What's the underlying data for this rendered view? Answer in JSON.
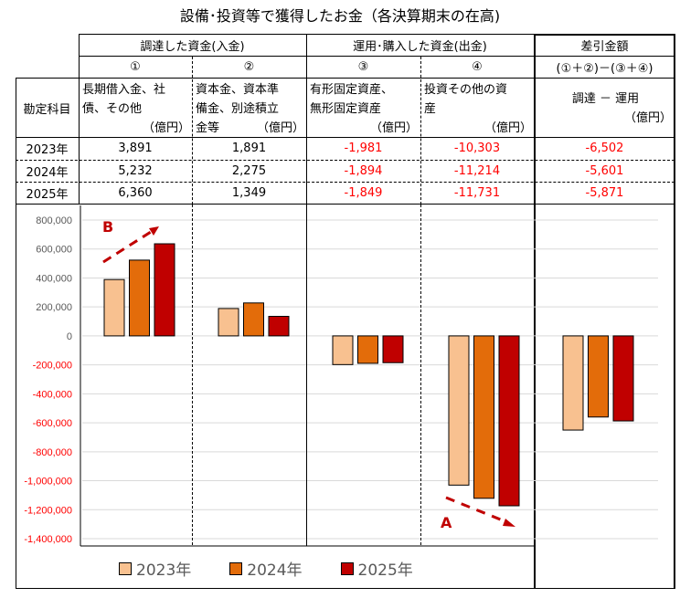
{
  "title": "設備･投資等で獲得したお金（各決算期末の在高)",
  "table": {
    "group_headers": [
      "調達した資金(入金)",
      "運用･購入した資金(出金)",
      "差引金額"
    ],
    "column_numbers": [
      "①",
      "②",
      "③",
      "④",
      "(①＋②)－(③＋④)"
    ],
    "row_header_label": "勘定科目",
    "column_descriptions": [
      {
        "line1": "長期借入金、社",
        "line2": "債、その他",
        "unit": "（億円）"
      },
      {
        "line1": "資本金、資本準",
        "line2": "備金、別途積立",
        "line3": "金等",
        "unit": "（億円）"
      },
      {
        "line1": "有形固定資産、",
        "line2": "無形固定資産",
        "unit": "（億円）"
      },
      {
        "line1": "投資その他の資",
        "line2": "産",
        "unit": "（億円）"
      },
      {
        "line1": "調達 － 運用",
        "unit": "（億円）"
      }
    ],
    "rows": [
      {
        "year": "2023年",
        "values": [
          "3,891",
          "1,891",
          "-1,981",
          "-10,303",
          "-6,502"
        ]
      },
      {
        "year": "2024年",
        "values": [
          "5,232",
          "2,275",
          "-1,894",
          "-11,214",
          "-5,601"
        ]
      },
      {
        "year": "2025年",
        "values": [
          "6,360",
          "1,349",
          "-1,849",
          "-11,731",
          "-5,871"
        ]
      }
    ]
  },
  "chart_data": {
    "type": "bar",
    "categories": [
      "①",
      "②",
      "③",
      "④",
      "差引"
    ],
    "series": [
      {
        "name": "2023年",
        "color": "#f8c190",
        "values": [
          389100,
          189100,
          -198100,
          -1030300,
          -650200
        ]
      },
      {
        "name": "2024年",
        "color": "#e36c0a",
        "values": [
          523200,
          227500,
          -189400,
          -1121400,
          -560100
        ]
      },
      {
        "name": "2025年",
        "color": "#c00000",
        "values": [
          636000,
          134900,
          -184900,
          -1173100,
          -587100
        ]
      }
    ],
    "ylim": [
      -1400000,
      800000
    ],
    "yticks": [
      "800,000",
      "600,000",
      "400,000",
      "200,000",
      "0",
      "-200,000",
      "-400,000",
      "-600,000",
      "-800,000",
      "-1,000,000",
      "-1,200,000",
      "-1,400,000"
    ],
    "ytick_values": [
      800000,
      600000,
      400000,
      200000,
      0,
      -200000,
      -400000,
      -600000,
      -800000,
      -1000000,
      -1200000,
      -1400000
    ],
    "negative_tick_color": "#ff0000",
    "legend_position": "bottom",
    "annotations": [
      "B",
      "A"
    ],
    "annotation_color": "#c00000"
  }
}
